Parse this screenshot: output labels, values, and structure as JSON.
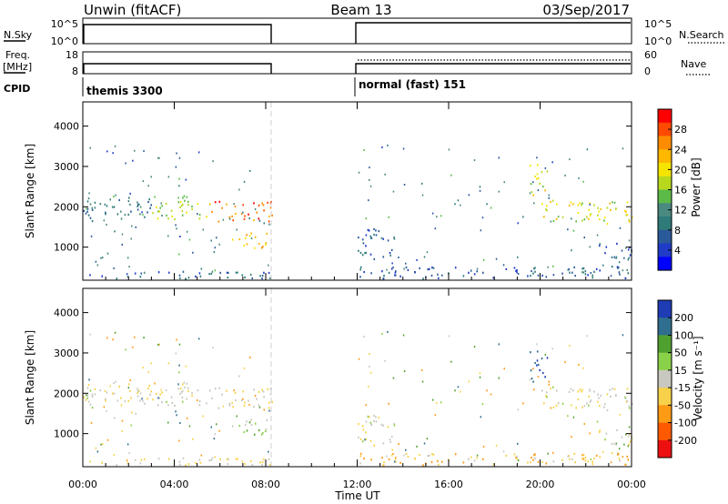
{
  "header": {
    "left_title": "Unwin (fitACF)",
    "center_title": "Beam 13",
    "right_title": "03/Sep/2017"
  },
  "top_panels": {
    "nsky_label": "N.Sky",
    "nsky_ticks": [
      "10^5",
      "10^0"
    ],
    "nsearch_label": "N.Search",
    "nsearch_ticks": [
      "10^5",
      "10^0"
    ],
    "freq_label_1": "Freq.",
    "freq_label_2": "[MHz]",
    "freq_ticks": [
      "18",
      "8"
    ],
    "nave_label": "Nave",
    "nave_ticks": [
      "60",
      "0"
    ],
    "cpid_label": "CPID",
    "cpid_entries": [
      "themis 3300",
      "normal (fast) 151"
    ]
  },
  "panel1": {
    "ylabel": "Slant Range [km]",
    "yticks": [
      "4000",
      "3000",
      "2000",
      "1000"
    ],
    "cbar_label": "Power [dB]",
    "cbar_ticks": [
      "28",
      "24",
      "20",
      "16",
      "12",
      "8",
      "4"
    ],
    "cbar_colors": [
      "#ff0000",
      "#ff4a00",
      "#ff8c00",
      "#ffb800",
      "#f5e400",
      "#b8d81e",
      "#5cbb48",
      "#4a8a80",
      "#2f7b7a",
      "#2a5a9a",
      "#1f3bc8",
      "#0000ff"
    ]
  },
  "panel2": {
    "ylabel": "Slant Range [km]",
    "yticks": [
      "4000",
      "3000",
      "2000",
      "1000"
    ],
    "cbar_label": "Velocity [m s⁻¹]",
    "cbar_ticks": [
      "200",
      "100",
      "50",
      "15",
      "-15",
      "-50",
      "-100",
      "-200"
    ],
    "cbar_colors": [
      "#1e3cb4",
      "#2f6e8e",
      "#50a030",
      "#8ad14a",
      "#c8c8c0",
      "#f7d14a",
      "#ff9a14",
      "#ff5a00",
      "#ee1010"
    ]
  },
  "xaxis": {
    "ticks": [
      "00:00",
      "04:00",
      "08:00",
      "12:00",
      "16:00",
      "20:00",
      "00:00"
    ],
    "label": "Time UT"
  },
  "chart_data": {
    "type": "heatmap",
    "title": "Unwin (fitACF) Beam 13 03/Sep/2017",
    "xlabel": "Time UT",
    "xlim_hours": [
      0,
      24
    ],
    "ylim_km": [
      180,
      4600
    ],
    "data_gap_hours": [
      8.3,
      12.0
    ],
    "cpid_modes": [
      {
        "name": "themis 3300",
        "start_hour": 0.0,
        "end_hour": 8.3
      },
      {
        "name": "normal (fast) 151",
        "start_hour": 12.0,
        "end_hour": 24.0
      }
    ],
    "freq_mhz_approx": 11,
    "power_range_db": [
      0,
      30
    ],
    "velocity_range_ms": [
      -250,
      250
    ],
    "echo_regions": [
      {
        "t0": 0.0,
        "t1": 3.2,
        "r0": 1650,
        "r1": 2250,
        "power": 8,
        "velocity": -10
      },
      {
        "t0": 3.0,
        "t1": 5.5,
        "r0": 1700,
        "r1": 2300,
        "power": 16,
        "velocity": -10
      },
      {
        "t0": 5.4,
        "t1": 8.3,
        "r0": 1650,
        "r1": 2150,
        "power": 26,
        "velocity": -15
      },
      {
        "t0": 6.5,
        "t1": 8.3,
        "r0": 1000,
        "r1": 1400,
        "power": 22,
        "velocity": 20
      },
      {
        "t0": 0.0,
        "t1": 8.3,
        "r0": 230,
        "r1": 430,
        "power": 6,
        "velocity": -20
      },
      {
        "t0": 12.0,
        "t1": 24.0,
        "r0": 230,
        "r1": 550,
        "power": 6,
        "velocity": -40
      },
      {
        "t0": 19.5,
        "t1": 20.3,
        "r0": 2300,
        "r1": 3100,
        "power": 18,
        "velocity": 150
      },
      {
        "t0": 20.0,
        "t1": 24.0,
        "r0": 1600,
        "r1": 2200,
        "power": 18,
        "velocity": -10
      },
      {
        "t0": 12.0,
        "t1": 13.6,
        "r0": 650,
        "r1": 1500,
        "power": 6,
        "velocity": -10
      },
      {
        "t0": 22.5,
        "t1": 24.0,
        "r0": 750,
        "r1": 1150,
        "power": 5,
        "velocity": -10
      }
    ]
  }
}
